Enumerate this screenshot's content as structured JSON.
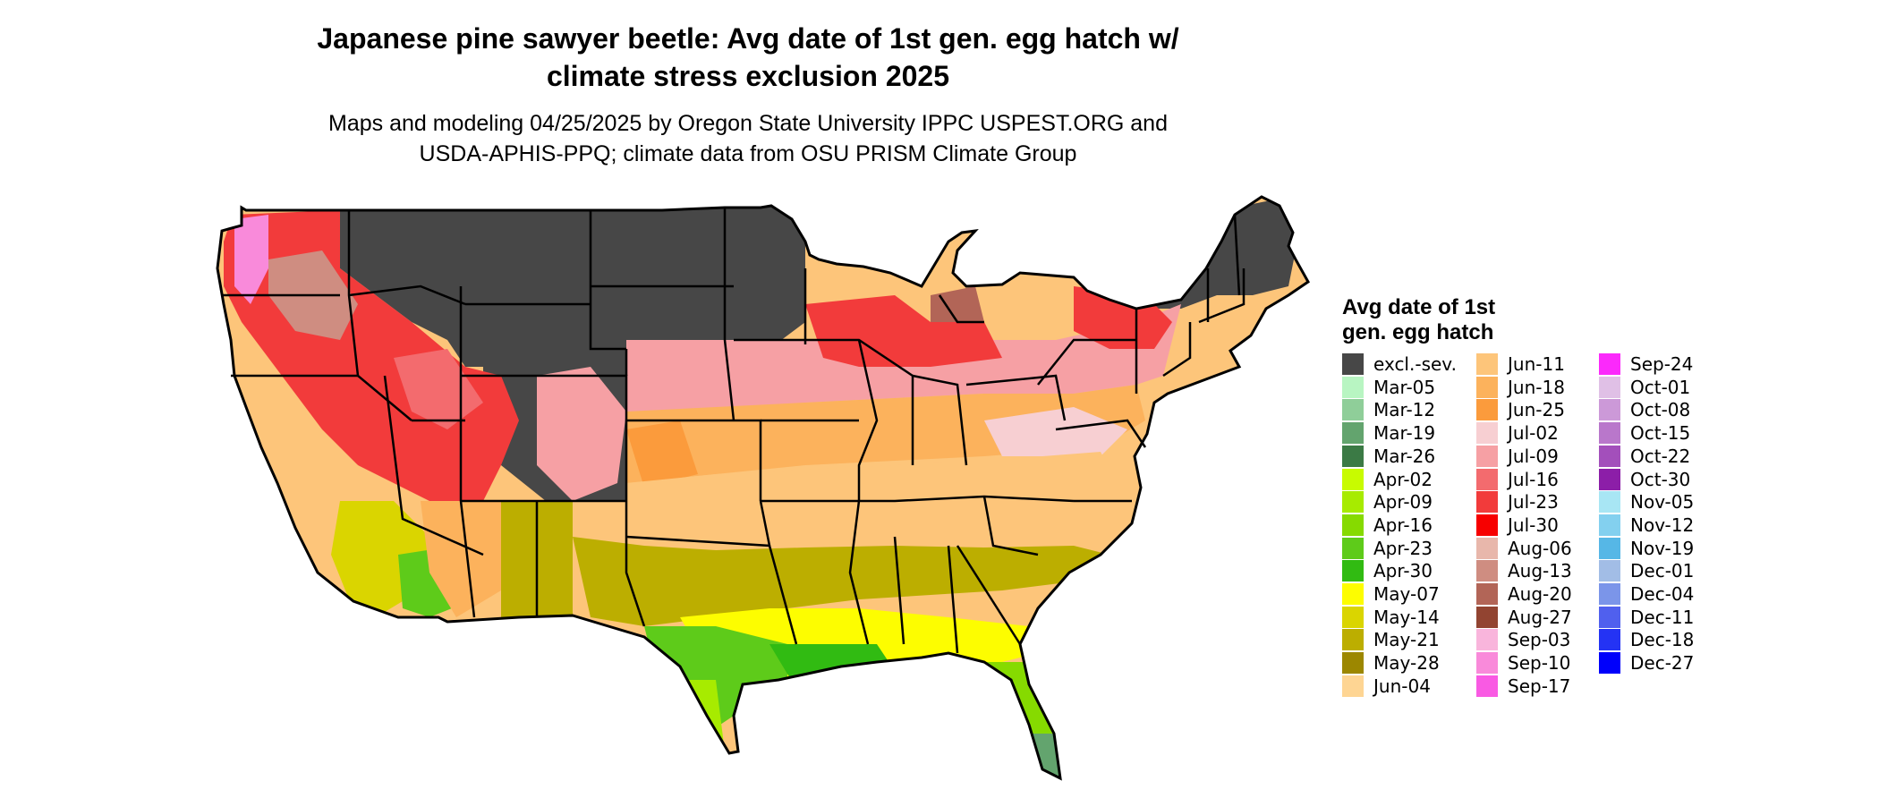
{
  "title": "Japanese pine sawyer beetle: Avg date of 1st gen. egg hatch w/\nclimate stress exclusion 2025",
  "subtitle": "Maps and modeling 04/25/2025 by Oregon State University IPPC USPEST.ORG and\nUSDA-APHIS-PPQ; climate data from OSU PRISM Climate Group",
  "legend": {
    "title": "Avg date of 1st\ngen. egg hatch",
    "items": [
      {
        "label": "excl.-sev.",
        "color": "#474747"
      },
      {
        "label": "Mar-05",
        "color": "#b8f5c2"
      },
      {
        "label": "Mar-12",
        "color": "#8fce99"
      },
      {
        "label": "Mar-19",
        "color": "#63a46e"
      },
      {
        "label": "Mar-26",
        "color": "#3b7a45"
      },
      {
        "label": "Apr-02",
        "color": "#c8fb00"
      },
      {
        "label": "Apr-09",
        "color": "#a7eb00"
      },
      {
        "label": "Apr-16",
        "color": "#86da00"
      },
      {
        "label": "Apr-23",
        "color": "#5ecb1a"
      },
      {
        "label": "Apr-30",
        "color": "#31bb12"
      },
      {
        "label": "May-07",
        "color": "#fdfd00"
      },
      {
        "label": "May-14",
        "color": "#dad500"
      },
      {
        "label": "May-21",
        "color": "#bcae00"
      },
      {
        "label": "May-28",
        "color": "#9c8700"
      },
      {
        "label": "Jun-04",
        "color": "#fed593"
      },
      {
        "label": "Jun-11",
        "color": "#fdc57a"
      },
      {
        "label": "Jun-18",
        "color": "#fcb25c"
      },
      {
        "label": "Jun-25",
        "color": "#fb9b3c"
      },
      {
        "label": "Jul-02",
        "color": "#f7cfd2"
      },
      {
        "label": "Jul-09",
        "color": "#f6a0a4"
      },
      {
        "label": "Jul-16",
        "color": "#f36b6e"
      },
      {
        "label": "Jul-23",
        "color": "#f23b3b"
      },
      {
        "label": "Jul-30",
        "color": "#f70000"
      },
      {
        "label": "Aug-06",
        "color": "#e8b7ab"
      },
      {
        "label": "Aug-13",
        "color": "#cf8d81"
      },
      {
        "label": "Aug-20",
        "color": "#b26557"
      },
      {
        "label": "Aug-27",
        "color": "#924431"
      },
      {
        "label": "Sep-03",
        "color": "#f9b5dc"
      },
      {
        "label": "Sep-10",
        "color": "#f98ada"
      },
      {
        "label": "Sep-17",
        "color": "#f95ae3"
      },
      {
        "label": "Sep-24",
        "color": "#fb29fb"
      },
      {
        "label": "Oct-01",
        "color": "#e0c0e6"
      },
      {
        "label": "Oct-08",
        "color": "#cc99d8"
      },
      {
        "label": "Oct-15",
        "color": "#b977cb"
      },
      {
        "label": "Oct-22",
        "color": "#a34fbb"
      },
      {
        "label": "Oct-30",
        "color": "#8c1ea8"
      },
      {
        "label": "Nov-05",
        "color": "#a8e6f4"
      },
      {
        "label": "Nov-12",
        "color": "#83d0ef"
      },
      {
        "label": "Nov-19",
        "color": "#56b7e6"
      },
      {
        "label": "Dec-01",
        "color": "#a2bde6"
      },
      {
        "label": "Dec-04",
        "color": "#7b95e9"
      },
      {
        "label": "Dec-11",
        "color": "#5060ee"
      },
      {
        "label": "Dec-18",
        "color": "#2433f4"
      },
      {
        "label": "Dec-27",
        "color": "#0000fb"
      }
    ]
  }
}
